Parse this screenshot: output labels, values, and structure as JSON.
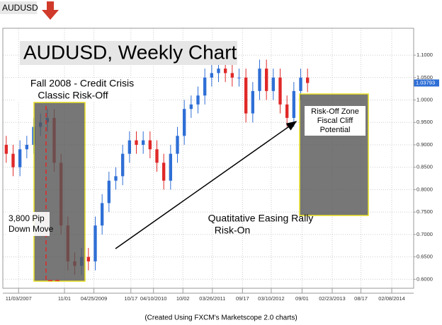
{
  "chart_data": {
    "type": "candlestick",
    "symbol": "AUDUSD",
    "title": "AUDUSD, Weekly Chart",
    "footer": "(Created Using FXCM's Marketscope 2.0 charts)",
    "annotations": {
      "crisis": [
        "Fall 2008 - Credit Crisis",
        "Classic Risk-Off"
      ],
      "down_move": [
        "3,800 Pip",
        "Down Move"
      ],
      "rally": [
        "Quatitative Easing Rally",
        "Risk-On"
      ],
      "risk_zone": [
        "Risk-Off Zone",
        "Fiscal Cliff",
        "Potential"
      ]
    },
    "up_color": "#2f6fd6",
    "down_color": "#e02828",
    "categories": [
      null,
      null,
      null,
      null,
      null,
      null,
      null,
      null,
      null,
      null,
      null,
      null,
      null,
      null,
      null,
      null,
      null,
      null,
      null,
      null,
      null,
      null,
      null,
      null,
      null,
      null,
      null,
      null,
      null,
      null,
      null,
      null,
      null,
      null,
      null,
      null,
      null,
      null,
      null,
      null,
      null,
      null,
      null,
      null,
      null
    ],
    "open": [
      0.9,
      0.88,
      0.85,
      0.89,
      0.9,
      0.94,
      0.95,
      0.96,
      0.86,
      0.72,
      0.64,
      0.63,
      0.65,
      0.64,
      0.72,
      0.77,
      0.82,
      0.83,
      0.88,
      0.91,
      0.9,
      0.91,
      0.89,
      0.86,
      0.82,
      0.88,
      0.92,
      0.98,
      0.99,
      1.01,
      1.05,
      1.06,
      1.07,
      1.06,
      1.05,
      1.05,
      0.97,
      1.02,
      1.07,
      1.02,
      1.05,
      0.99,
      0.96,
      1.02,
      1.05
    ],
    "high": [
      0.92,
      0.9,
      0.91,
      0.92,
      0.96,
      0.97,
      0.98,
      0.98,
      0.88,
      0.74,
      0.66,
      0.67,
      0.67,
      0.74,
      0.79,
      0.84,
      0.85,
      0.9,
      0.93,
      0.93,
      0.93,
      0.93,
      0.91,
      0.88,
      0.9,
      0.94,
      1.0,
      1.01,
      1.03,
      1.07,
      1.08,
      1.09,
      1.09,
      1.08,
      1.07,
      1.07,
      1.04,
      1.09,
      1.09,
      1.07,
      1.07,
      1.01,
      1.04,
      1.07,
      1.07
    ],
    "low": [
      0.86,
      0.83,
      0.83,
      0.87,
      0.88,
      0.92,
      0.93,
      0.84,
      0.7,
      0.62,
      0.61,
      0.61,
      0.62,
      0.62,
      0.7,
      0.75,
      0.8,
      0.81,
      0.86,
      0.88,
      0.88,
      0.87,
      0.84,
      0.8,
      0.8,
      0.86,
      0.9,
      0.96,
      0.97,
      0.99,
      1.03,
      1.04,
      1.04,
      1.03,
      1.03,
      0.95,
      0.95,
      1.0,
      1.0,
      1.0,
      0.97,
      0.94,
      0.94,
      1.0,
      1.0175
    ],
    "close": [
      0.88,
      0.85,
      0.89,
      0.9,
      0.94,
      0.95,
      0.96,
      0.86,
      0.72,
      0.64,
      0.63,
      0.65,
      0.64,
      0.72,
      0.77,
      0.82,
      0.83,
      0.88,
      0.91,
      0.9,
      0.91,
      0.89,
      0.86,
      0.82,
      0.88,
      0.92,
      0.98,
      0.99,
      1.01,
      1.05,
      1.06,
      1.07,
      1.06,
      1.05,
      1.05,
      0.97,
      1.02,
      1.07,
      1.02,
      1.05,
      0.99,
      0.96,
      1.02,
      1.05,
      1.03793
    ],
    "last_price": {
      "value": 1.03793,
      "label": "1.03793"
    },
    "xlim": [
      0,
      60
    ],
    "xticks": [
      {
        "value": 2.3,
        "label": "11/03/2007"
      },
      {
        "value": 9,
        "label": "11/01"
      },
      {
        "value": 13.3,
        "label": "04/25/2009"
      },
      {
        "value": 18.7,
        "label": "10/17"
      },
      {
        "value": 22,
        "label": "04/10/2010"
      },
      {
        "value": 26.3,
        "label": "10/02"
      },
      {
        "value": 30.6,
        "label": "03/26/2011"
      },
      {
        "value": 35,
        "label": "09/17"
      },
      {
        "value": 39.2,
        "label": "03/10/2012"
      },
      {
        "value": 43.7,
        "label": "09/01"
      },
      {
        "value": 48.1,
        "label": "02/23/2013"
      },
      {
        "value": 52.3,
        "label": "08/17"
      },
      {
        "value": 56.8,
        "label": "02/08/2014"
      }
    ],
    "ylim": [
      0.58,
      1.16
    ],
    "yticks": [
      {
        "value": 0.6,
        "label": "0.6000"
      },
      {
        "value": 0.65,
        "label": "0.6500"
      },
      {
        "value": 0.7,
        "label": "0.7000"
      },
      {
        "value": 0.75,
        "label": "0.7500"
      },
      {
        "value": 0.8,
        "label": "0.8000"
      },
      {
        "value": 0.85,
        "label": "0.8500"
      },
      {
        "value": 0.9,
        "label": "0.9000"
      },
      {
        "value": 0.95,
        "label": "0.9500"
      },
      {
        "value": 1.0,
        "label": "1.0000"
      },
      {
        "value": 1.05,
        "label": "1.0500"
      },
      {
        "value": 1.1,
        "label": "1.1000"
      }
    ],
    "grid": true
  }
}
